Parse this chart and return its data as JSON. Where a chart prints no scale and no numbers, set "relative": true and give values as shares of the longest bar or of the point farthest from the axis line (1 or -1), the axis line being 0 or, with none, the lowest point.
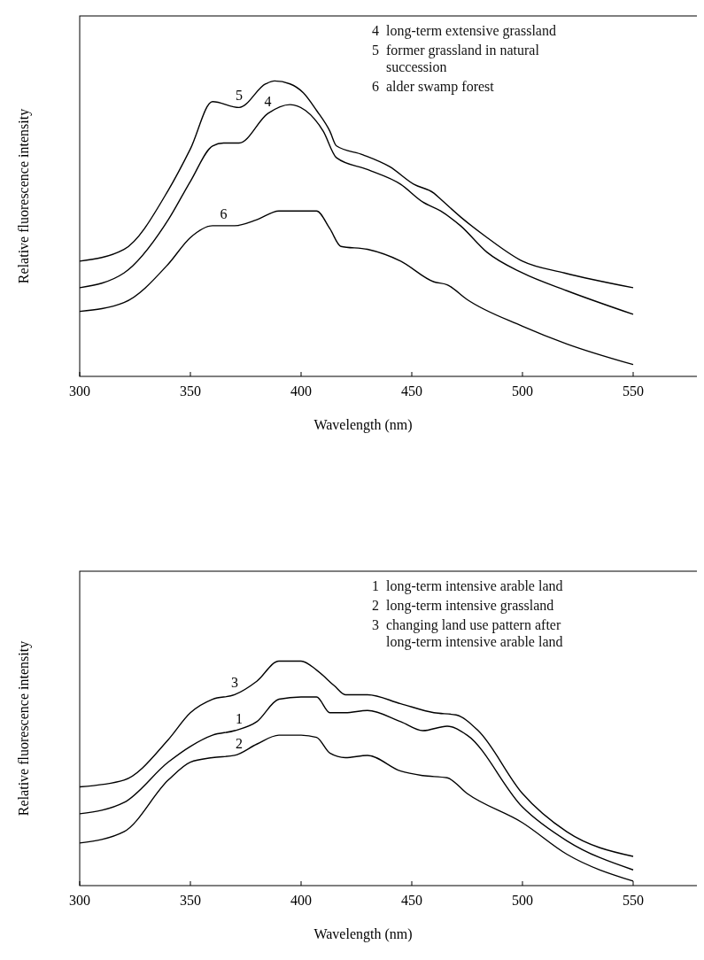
{
  "chart_data": [
    {
      "type": "line",
      "relative": true,
      "xlabel": "Wavelength (nm)",
      "ylabel": "Relative fluorescence intensity",
      "xlim": [
        300,
        580
      ],
      "xticks": [
        300,
        350,
        400,
        450,
        500,
        550
      ],
      "grid": false,
      "marker": "none",
      "line_style": "solid",
      "series": [
        {
          "color": "#000000",
          "x": [
            300,
            320,
            340,
            350,
            360,
            365,
            372,
            385,
            395,
            402,
            410,
            416,
            430,
            445,
            455,
            463,
            472,
            484,
            500,
            520,
            550
          ],
          "values": [
            0.3,
            0.35,
            0.53,
            0.66,
            0.78,
            0.79,
            0.79,
            0.89,
            0.92,
            0.9,
            0.83,
            0.74,
            0.7,
            0.65,
            0.59,
            0.56,
            0.51,
            0.42,
            0.35,
            0.29,
            0.21
          ]
        },
        {
          "color": "#000000",
          "x": [
            300,
            320,
            340,
            350,
            360,
            372,
            384,
            388,
            395,
            401,
            407,
            413,
            416,
            428,
            440,
            451,
            460,
            463,
            472,
            484,
            500,
            519,
            550
          ],
          "values": [
            0.39,
            0.43,
            0.63,
            0.77,
            0.93,
            0.91,
            0.99,
            1.0,
            0.99,
            0.96,
            0.9,
            0.83,
            0.78,
            0.75,
            0.71,
            0.65,
            0.62,
            0.6,
            0.54,
            0.47,
            0.39,
            0.35,
            0.3
          ]
        },
        {
          "color": "#000000",
          "x": [
            300,
            320,
            340,
            350,
            360,
            370,
            380,
            390,
            400,
            407,
            413,
            418,
            430,
            445,
            460,
            466,
            475,
            500,
            520,
            550
          ],
          "values": [
            0.22,
            0.25,
            0.38,
            0.47,
            0.51,
            0.51,
            0.53,
            0.56,
            0.56,
            0.56,
            0.5,
            0.44,
            0.43,
            0.39,
            0.32,
            0.31,
            0.26,
            0.17,
            0.11,
            0.04
          ]
        }
      ],
      "annotations": [
        "4 long-term extensive grassland",
        "5 former grassland in natural succession",
        "6 alder swamp forest",
        {
          "text": "5",
          "x": 372,
          "y": 0.91
        },
        {
          "text": "4",
          "x": 385,
          "y": 0.89
        },
        {
          "text": "6",
          "x": 365,
          "y": 0.51
        }
      ]
    },
    {
      "type": "line",
      "relative": true,
      "xlabel": "Wavelength (nm)",
      "ylabel": "Relative fluorescence intensity",
      "xlim": [
        300,
        580
      ],
      "xticks": [
        300,
        350,
        400,
        450,
        500,
        550
      ],
      "grid": false,
      "marker": "none",
      "line_style": "solid",
      "series": [
        {
          "color": "#000000",
          "x": [
            300,
            320,
            340,
            350,
            360,
            370,
            380,
            390,
            400,
            407,
            413,
            420,
            430,
            445,
            455,
            466,
            475,
            500,
            520,
            550
          ],
          "values": [
            0.32,
            0.37,
            0.55,
            0.62,
            0.67,
            0.69,
            0.73,
            0.83,
            0.84,
            0.84,
            0.77,
            0.77,
            0.78,
            0.73,
            0.69,
            0.71,
            0.67,
            0.35,
            0.2,
            0.07
          ]
        },
        {
          "color": "#000000",
          "x": [
            300,
            320,
            340,
            350,
            360,
            370,
            380,
            390,
            400,
            407,
            413,
            420,
            430,
            445,
            455,
            466,
            475,
            500,
            520,
            550
          ],
          "values": [
            0.19,
            0.24,
            0.47,
            0.55,
            0.57,
            0.58,
            0.63,
            0.67,
            0.67,
            0.66,
            0.59,
            0.57,
            0.58,
            0.51,
            0.49,
            0.48,
            0.41,
            0.28,
            0.14,
            0.02
          ]
        },
        {
          "color": "#000000",
          "x": [
            300,
            320,
            340,
            350,
            360,
            370,
            380,
            390,
            400,
            407,
            415,
            420,
            430,
            445,
            460,
            470,
            480,
            500,
            520,
            550
          ],
          "values": [
            0.44,
            0.47,
            0.65,
            0.77,
            0.83,
            0.85,
            0.91,
            1.0,
            1.0,
            0.96,
            0.89,
            0.85,
            0.85,
            0.81,
            0.77,
            0.76,
            0.69,
            0.41,
            0.24,
            0.13
          ]
        }
      ],
      "annotations": [
        "1 long-term intensive arable land",
        "2 long-term intensive grassland",
        "3 changing land use pattern after long-term intensive arable land",
        {
          "text": "3",
          "x": 370,
          "y": 0.85
        },
        {
          "text": "1",
          "x": 372,
          "y": 0.69
        },
        {
          "text": "2",
          "x": 372,
          "y": 0.58
        }
      ]
    }
  ]
}
